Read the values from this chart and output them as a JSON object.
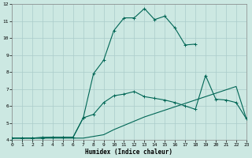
{
  "xlabel": "Humidex (Indice chaleur)",
  "background_color": "#cce8e2",
  "grid_color": "#aaccca",
  "line_color": "#006655",
  "xlim": [
    0,
    23
  ],
  "ylim": [
    4,
    12
  ],
  "xticks": [
    0,
    1,
    2,
    3,
    4,
    5,
    6,
    7,
    8,
    9,
    10,
    11,
    12,
    13,
    14,
    15,
    16,
    17,
    18,
    19,
    20,
    21,
    22,
    23
  ],
  "yticks": [
    4,
    5,
    6,
    7,
    8,
    9,
    10,
    11,
    12
  ],
  "series1_x": [
    0,
    1,
    2,
    3,
    4,
    5,
    6,
    7,
    8,
    9,
    10,
    11,
    12,
    13,
    14,
    15,
    16,
    17,
    18,
    19,
    20,
    21,
    22,
    23
  ],
  "series1_y": [
    4.1,
    4.1,
    4.1,
    4.1,
    4.1,
    4.1,
    4.1,
    4.1,
    4.2,
    4.3,
    4.6,
    4.85,
    5.1,
    5.35,
    5.55,
    5.75,
    5.95,
    6.15,
    6.35,
    6.55,
    6.75,
    6.95,
    7.15,
    5.25
  ],
  "series2_x": [
    0,
    1,
    2,
    3,
    4,
    5,
    6,
    7,
    8,
    9,
    10,
    11,
    12,
    13,
    14,
    15,
    16,
    17,
    18,
    19,
    20,
    21,
    22,
    23
  ],
  "series2_y": [
    4.1,
    4.1,
    4.1,
    4.15,
    4.15,
    4.15,
    4.15,
    5.3,
    5.5,
    6.2,
    6.6,
    6.7,
    6.85,
    6.55,
    6.45,
    6.35,
    6.2,
    6.0,
    5.8,
    7.8,
    6.4,
    6.35,
    6.2,
    5.25
  ],
  "series3_x": [
    0,
    1,
    2,
    3,
    4,
    5,
    6,
    7,
    8,
    9,
    10,
    11,
    12,
    13,
    14,
    15,
    16,
    17,
    18
  ],
  "series3_y": [
    4.1,
    4.1,
    4.1,
    4.1,
    4.15,
    4.15,
    4.15,
    5.3,
    7.9,
    8.7,
    10.45,
    11.2,
    11.2,
    11.75,
    11.1,
    11.3,
    10.6,
    9.6,
    9.65
  ]
}
